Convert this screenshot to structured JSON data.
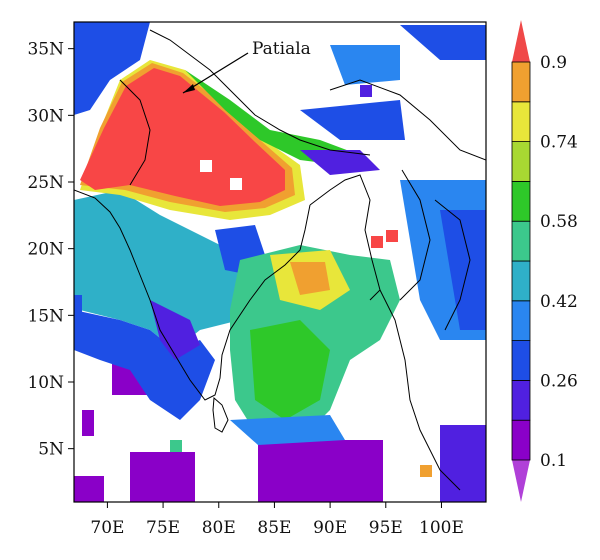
{
  "map": {
    "lon_range": [
      67,
      104
    ],
    "lat_range": [
      1,
      37
    ],
    "x_ticks": [
      {
        "lon": 70,
        "label": "70E"
      },
      {
        "lon": 75,
        "label": "75E"
      },
      {
        "lon": 80,
        "label": "80E"
      },
      {
        "lon": 85,
        "label": "85E"
      },
      {
        "lon": 90,
        "label": "90E"
      },
      {
        "lon": 95,
        "label": "95E"
      },
      {
        "lon": 100,
        "label": "100E"
      }
    ],
    "y_ticks": [
      {
        "lat": 35,
        "label": "35N"
      },
      {
        "lat": 30,
        "label": "30N"
      },
      {
        "lat": 25,
        "label": "25N"
      },
      {
        "lat": 20,
        "label": "20N"
      },
      {
        "lat": 15,
        "label": "15N"
      },
      {
        "lat": 10,
        "label": "10N"
      },
      {
        "lat": 5,
        "label": "5N"
      }
    ],
    "annotation": {
      "text": "Patiala",
      "lon": 76.4,
      "lat": 30.3
    }
  },
  "colorbar": {
    "levels": [
      0.1,
      0.18,
      0.26,
      0.34,
      0.42,
      0.5,
      0.58,
      0.66,
      0.74,
      0.82,
      0.9
    ],
    "labeled_levels": [
      "0.1",
      "0.26",
      "0.42",
      "0.58",
      "0.74",
      "0.9"
    ],
    "colors": [
      "#8a00c8",
      "#5020e0",
      "#1e4ee6",
      "#2a86f0",
      "#2fb0c8",
      "#3cc88c",
      "#2ec829",
      "#a8d832",
      "#e8e63a",
      "#f0a030",
      "#ec6424"
    ],
    "extend_low_color": "#b040d8",
    "extend_high_color": "#f04848"
  },
  "palette": {
    "red": "#f84646",
    "orange": "#f0a030",
    "yellow": "#e8e63a",
    "lime": "#a8d832",
    "green": "#2ec829",
    "mint": "#3cc88c",
    "teal": "#2fb0c8",
    "sky": "#2a86f0",
    "blue": "#1e4ee6",
    "indigo": "#5020e0",
    "violet": "#8a00c8",
    "outline": "#000000"
  }
}
